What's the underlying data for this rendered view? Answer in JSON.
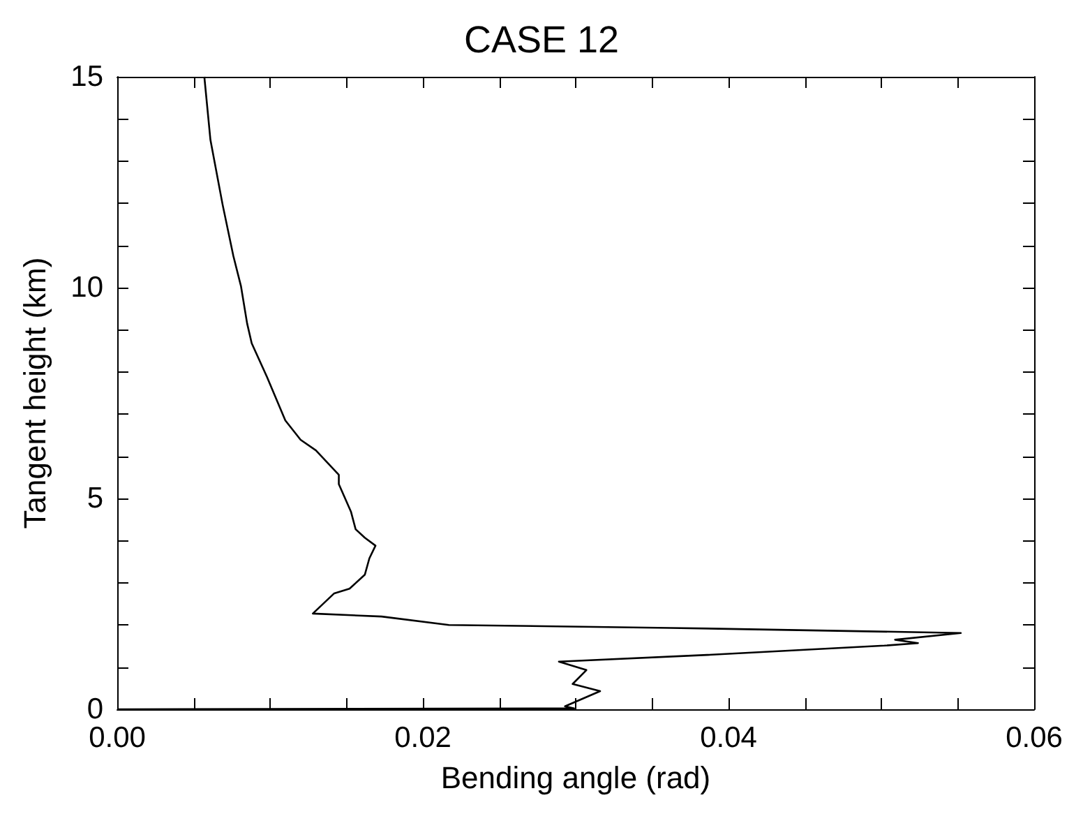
{
  "chart_data": {
    "type": "line",
    "title": "CASE 12",
    "xlabel": "Bending angle (rad)",
    "ylabel": "Tangent height (km)",
    "x": [
      0.0057,
      0.0061,
      0.0069,
      0.0076,
      0.0081,
      0.0085,
      0.0088,
      0.0098,
      0.011,
      0.012,
      0.013,
      0.0145,
      0.0145,
      0.0145,
      0.0153,
      0.0156,
      0.0162,
      0.0169,
      0.0165,
      0.0162,
      0.0152,
      0.0142,
      0.0128,
      0.0173,
      0.0217,
      0.0362,
      0.0552,
      0.0509,
      0.0524,
      0.0502,
      0.0386,
      0.0289,
      0.0307,
      0.0298,
      0.0316,
      0.0293,
      0.0299,
      0
    ],
    "values": [
      15.0,
      13.5,
      11.96,
      10.75,
      10.03,
      9.15,
      8.68,
      7.88,
      6.85,
      6.39,
      6.14,
      5.56,
      5.51,
      5.34,
      4.68,
      4.27,
      4.07,
      3.88,
      3.58,
      3.19,
      2.86,
      2.75,
      2.27,
      2.2,
      2.0,
      1.93,
      1.81,
      1.65,
      1.57,
      1.51,
      1.29,
      1.13,
      0.93,
      0.6,
      0.43,
      0.07,
      0.02,
      0
    ],
    "color": "#000000",
    "line_style": "solid",
    "marker": "none",
    "xlim": [
      0,
      0.06
    ],
    "xticks": [
      {
        "value": 0,
        "label": "0.00"
      },
      {
        "value": 0.005,
        "label": null
      },
      {
        "value": 0.01,
        "label": null
      },
      {
        "value": 0.015,
        "label": null
      },
      {
        "value": 0.02,
        "label": "0.02"
      },
      {
        "value": 0.025,
        "label": null
      },
      {
        "value": 0.03,
        "label": null
      },
      {
        "value": 0.035,
        "label": null
      },
      {
        "value": 0.04,
        "label": "0.04"
      },
      {
        "value": 0.045,
        "label": null
      },
      {
        "value": 0.05,
        "label": null
      },
      {
        "value": 0.055,
        "label": null
      },
      {
        "value": 0.06,
        "label": "0.06"
      }
    ],
    "ylim": [
      0,
      15
    ],
    "yticks": [
      0,
      {
        "value": 1,
        "label": null
      },
      {
        "value": 2,
        "label": null
      },
      {
        "value": 3,
        "label": null
      },
      {
        "value": 4,
        "label": null
      },
      5,
      {
        "value": 6,
        "label": null
      },
      {
        "value": 7,
        "label": null
      },
      {
        "value": 8,
        "label": null
      },
      {
        "value": 9,
        "label": null
      },
      10,
      {
        "value": 11,
        "label": null
      },
      {
        "value": 12,
        "label": null
      },
      {
        "value": 13,
        "label": null
      },
      {
        "value": 14,
        "label": null
      },
      15
    ]
  }
}
